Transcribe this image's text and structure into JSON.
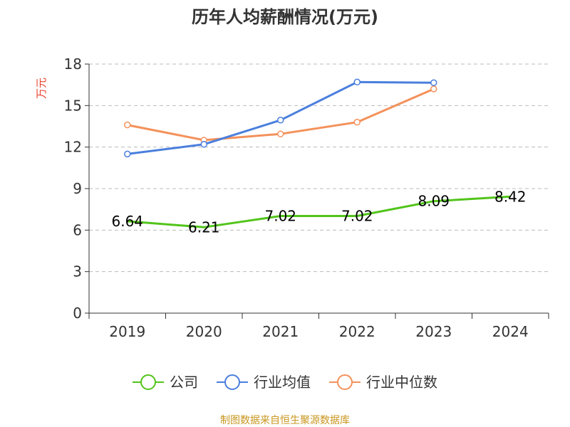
{
  "chart_data": {
    "type": "line",
    "title": "历年人均薪酬情况(万元)",
    "ylabel": "万元",
    "xlabel": "",
    "categories": [
      "2019",
      "2020",
      "2021",
      "2022",
      "2023",
      "2024"
    ],
    "ylim": [
      0,
      18
    ],
    "yticks": [
      0,
      3,
      6,
      9,
      12,
      15,
      18
    ],
    "grid": true,
    "legend_position": "bottom",
    "series": [
      {
        "name": "公司",
        "color": "#52c41a",
        "values": [
          6.64,
          6.21,
          7.02,
          7.02,
          8.09,
          8.42
        ],
        "labels": [
          "6.64",
          "6.21",
          "7.02",
          "7.02",
          "8.09",
          "8.42"
        ]
      },
      {
        "name": "行业均值",
        "color": "#4a7fdd",
        "values": [
          11.5,
          12.2,
          13.95,
          16.7,
          16.65,
          null
        ]
      },
      {
        "name": "行业中位数",
        "color": "#f4915b",
        "values": [
          13.6,
          12.5,
          12.95,
          13.8,
          16.2,
          null
        ]
      }
    ]
  },
  "footer": {
    "source": "制图数据来自恒生聚源数据库"
  }
}
